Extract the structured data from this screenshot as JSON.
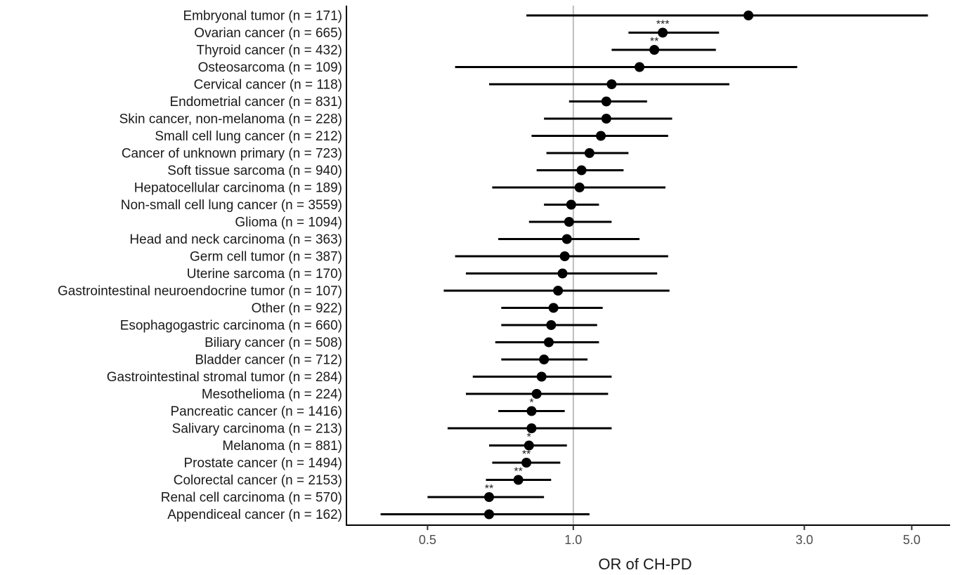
{
  "chart_data": {
    "type": "forest",
    "title": "",
    "xlabel": "OR of CH-PD",
    "ylabel": "",
    "x_scale": "log",
    "xlim": [
      0.34,
      6.0
    ],
    "x_ticks": [
      0.5,
      1.0,
      3.0,
      5.0
    ],
    "x_tick_labels": [
      "0.5",
      "1.0",
      "3.0",
      "5.0"
    ],
    "reference_line": 1.0,
    "grid": false,
    "rows": [
      {
        "label": "Embryonal tumor (n = 171)",
        "or": 2.3,
        "lo": 0.8,
        "hi": 5.4,
        "sig": ""
      },
      {
        "label": "Ovarian cancer (n = 665)",
        "or": 1.53,
        "lo": 1.3,
        "hi": 2.0,
        "sig": "***"
      },
      {
        "label": "Thyroid cancer (n = 432)",
        "or": 1.47,
        "lo": 1.2,
        "hi": 1.97,
        "sig": "**"
      },
      {
        "label": "Osteosarcoma (n = 109)",
        "or": 1.37,
        "lo": 0.57,
        "hi": 2.9,
        "sig": ""
      },
      {
        "label": "Cervical cancer (n = 118)",
        "or": 1.2,
        "lo": 0.67,
        "hi": 2.1,
        "sig": ""
      },
      {
        "label": "Endometrial cancer (n = 831)",
        "or": 1.17,
        "lo": 0.98,
        "hi": 1.42,
        "sig": ""
      },
      {
        "label": "Skin cancer, non-melanoma (n = 228)",
        "or": 1.17,
        "lo": 0.87,
        "hi": 1.6,
        "sig": ""
      },
      {
        "label": "Small cell lung cancer (n = 212)",
        "or": 1.14,
        "lo": 0.82,
        "hi": 1.57,
        "sig": ""
      },
      {
        "label": "Cancer of unknown primary (n = 723)",
        "or": 1.08,
        "lo": 0.88,
        "hi": 1.3,
        "sig": ""
      },
      {
        "label": "Soft tissue sarcoma (n = 940)",
        "or": 1.04,
        "lo": 0.84,
        "hi": 1.27,
        "sig": ""
      },
      {
        "label": "Hepatocellular carcinoma (n = 189)",
        "or": 1.03,
        "lo": 0.68,
        "hi": 1.55,
        "sig": ""
      },
      {
        "label": "Non-small cell lung cancer (n = 3559)",
        "or": 0.99,
        "lo": 0.87,
        "hi": 1.13,
        "sig": ""
      },
      {
        "label": "Glioma (n = 1094)",
        "or": 0.98,
        "lo": 0.81,
        "hi": 1.2,
        "sig": ""
      },
      {
        "label": "Head and neck carcinoma (n = 363)",
        "or": 0.97,
        "lo": 0.7,
        "hi": 1.37,
        "sig": ""
      },
      {
        "label": "Germ cell tumor (n = 387)",
        "or": 0.96,
        "lo": 0.57,
        "hi": 1.57,
        "sig": ""
      },
      {
        "label": "Uterine sarcoma (n = 170)",
        "or": 0.95,
        "lo": 0.6,
        "hi": 1.49,
        "sig": ""
      },
      {
        "label": "Gastrointestinal neuroendocrine tumor (n = 107)",
        "or": 0.93,
        "lo": 0.54,
        "hi": 1.58,
        "sig": ""
      },
      {
        "label": "Other (n = 922)",
        "or": 0.91,
        "lo": 0.71,
        "hi": 1.15,
        "sig": ""
      },
      {
        "label": "Esophagogastric carcinoma (n = 660)",
        "or": 0.9,
        "lo": 0.71,
        "hi": 1.12,
        "sig": ""
      },
      {
        "label": "Biliary cancer (n = 508)",
        "or": 0.89,
        "lo": 0.69,
        "hi": 1.13,
        "sig": ""
      },
      {
        "label": "Bladder cancer (n = 712)",
        "or": 0.87,
        "lo": 0.71,
        "hi": 1.07,
        "sig": ""
      },
      {
        "label": "Gastrointestinal stromal tumor (n = 284)",
        "or": 0.86,
        "lo": 0.62,
        "hi": 1.2,
        "sig": ""
      },
      {
        "label": "Mesothelioma (n = 224)",
        "or": 0.84,
        "lo": 0.6,
        "hi": 1.18,
        "sig": ""
      },
      {
        "label": "Pancreatic cancer (n = 1416)",
        "or": 0.82,
        "lo": 0.7,
        "hi": 0.96,
        "sig": "*"
      },
      {
        "label": "Salivary carcinoma (n = 213)",
        "or": 0.82,
        "lo": 0.55,
        "hi": 1.2,
        "sig": ""
      },
      {
        "label": "Melanoma (n = 881)",
        "or": 0.81,
        "lo": 0.67,
        "hi": 0.97,
        "sig": "*"
      },
      {
        "label": "Prostate cancer (n = 1494)",
        "or": 0.8,
        "lo": 0.68,
        "hi": 0.94,
        "sig": "**"
      },
      {
        "label": "Colorectal cancer (n = 2153)",
        "or": 0.77,
        "lo": 0.66,
        "hi": 0.9,
        "sig": "**"
      },
      {
        "label": "Renal cell carcinoma (n = 570)",
        "or": 0.67,
        "lo": 0.5,
        "hi": 0.87,
        "sig": "**"
      },
      {
        "label": "Appendiceal cancer (n = 162)",
        "or": 0.67,
        "lo": 0.4,
        "hi": 1.08,
        "sig": ""
      }
    ]
  }
}
